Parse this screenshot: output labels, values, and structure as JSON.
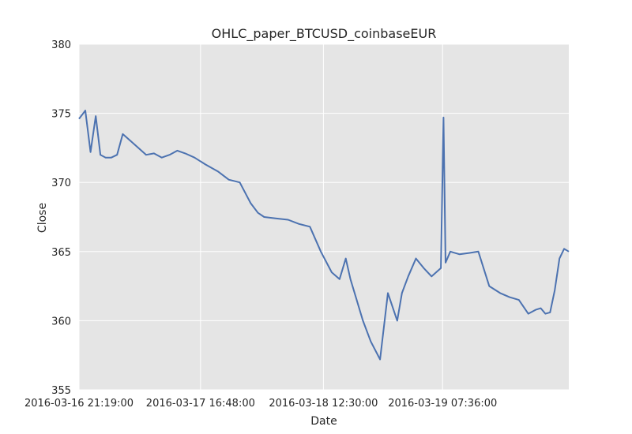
{
  "chart_data": {
    "type": "line",
    "title": "OHLC_paper_BTCUSD_coinbaseEUR",
    "xlabel": "Date",
    "ylabel": "Close",
    "ylim": [
      355,
      380
    ],
    "y_ticks": [
      355,
      360,
      365,
      370,
      375,
      380
    ],
    "xlim": [
      "2016-03-16 21:19:00",
      "2016-03-20 03:50:00"
    ],
    "x_ticks": [
      "2016-03-16 21:19:00",
      "2016-03-17 16:48:00",
      "2016-03-18 12:30:00",
      "2016-03-19 07:36:00"
    ],
    "grid": true,
    "series": [
      {
        "color": "#4c72b0",
        "x": [
          "2016-03-16 21:19:00",
          "2016-03-16 22:20:00",
          "2016-03-16 23:10:00",
          "2016-03-17 00:00:00",
          "2016-03-17 00:45:00",
          "2016-03-17 01:35:00",
          "2016-03-17 02:30:00",
          "2016-03-17 03:25:00",
          "2016-03-17 04:20:00",
          "2016-03-17 05:35:00",
          "2016-03-17 06:50:00",
          "2016-03-17 08:05:00",
          "2016-03-17 09:20:00",
          "2016-03-17 10:35:00",
          "2016-03-17 11:50:00",
          "2016-03-17 13:05:00",
          "2016-03-17 14:20:00",
          "2016-03-17 15:50:00",
          "2016-03-17 17:35:00",
          "2016-03-17 19:35:00",
          "2016-03-17 21:20:00",
          "2016-03-17 23:05:00",
          "2016-03-18 00:50:00",
          "2016-03-18 02:00:00",
          "2016-03-18 03:00:00",
          "2016-03-18 04:50:00",
          "2016-03-18 06:50:00",
          "2016-03-18 08:35:00",
          "2016-03-18 10:20:00",
          "2016-03-18 12:05:00",
          "2016-03-18 13:50:00",
          "2016-03-18 15:05:00",
          "2016-03-18 16:05:00",
          "2016-03-18 16:50:00",
          "2016-03-18 17:50:00",
          "2016-03-18 18:50:00",
          "2016-03-18 20:05:00",
          "2016-03-18 21:35:00",
          "2016-03-18 22:50:00",
          "2016-03-18 23:35:00",
          "2016-03-19 00:20:00",
          "2016-03-19 01:05:00",
          "2016-03-19 02:05:00",
          "2016-03-19 03:20:00",
          "2016-03-19 04:35:00",
          "2016-03-19 05:50:00",
          "2016-03-19 07:20:00",
          "2016-03-19 07:45:00",
          "2016-03-19 08:05:00",
          "2016-03-19 08:50:00",
          "2016-03-19 10:20:00",
          "2016-03-19 11:50:00",
          "2016-03-19 13:20:00",
          "2016-03-19 15:05:00",
          "2016-03-19 16:50:00",
          "2016-03-19 18:20:00",
          "2016-03-19 19:50:00",
          "2016-03-19 21:20:00",
          "2016-03-19 22:35:00",
          "2016-03-19 23:20:00",
          "2016-03-20 00:05:00",
          "2016-03-20 00:50:00",
          "2016-03-20 01:35:00",
          "2016-03-20 02:20:00",
          "2016-03-20 03:05:00",
          "2016-03-20 03:50:00"
        ],
        "values": [
          374.6,
          375.2,
          372.2,
          374.8,
          372.0,
          371.8,
          371.8,
          372.0,
          373.5,
          373.0,
          372.5,
          372.0,
          372.1,
          371.8,
          372.0,
          372.3,
          372.1,
          371.8,
          371.3,
          370.8,
          370.2,
          370.0,
          368.5,
          367.8,
          367.5,
          367.4,
          367.3,
          367.0,
          366.8,
          365.0,
          363.5,
          363.0,
          364.5,
          363.0,
          361.5,
          360.0,
          358.5,
          357.2,
          362.0,
          361.0,
          360.0,
          362.0,
          363.2,
          364.5,
          363.8,
          363.2,
          363.8,
          374.7,
          364.2,
          365.0,
          364.8,
          364.9,
          365.0,
          362.5,
          362.0,
          361.7,
          361.5,
          360.5,
          360.8,
          360.9,
          360.5,
          360.6,
          362.2,
          364.5,
          365.2,
          365.0
        ]
      }
    ]
  }
}
